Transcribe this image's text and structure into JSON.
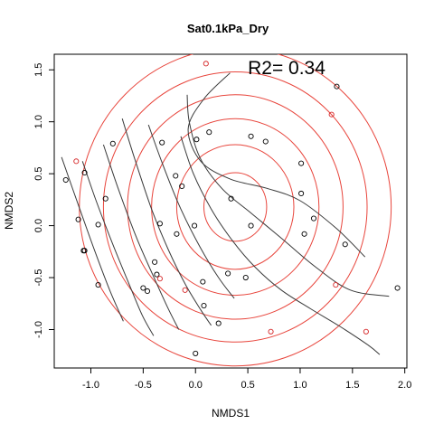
{
  "chart_data": {
    "type": "scatter",
    "title": "Sat0.1kPa_Dry",
    "xlabel": "NMDS1",
    "ylabel": "NMDS2",
    "xlim": [
      -1.35,
      2.02
    ],
    "ylim": [
      -1.37,
      1.65
    ],
    "xticks": [
      -1.0,
      -0.5,
      0.0,
      0.5,
      1.0,
      1.5,
      2.0
    ],
    "xtick_labels": [
      "-1.0",
      "-0.5",
      "0.0",
      "0.5",
      "1.0",
      "1.5",
      "2.0"
    ],
    "yticks": [
      -1.0,
      -0.5,
      0.0,
      0.5,
      1.0,
      1.5
    ],
    "ytick_labels": [
      "-1.0",
      "-0.5",
      "0.0",
      "0.5",
      "1.0",
      "1.5"
    ],
    "annotation": "R2= 0.34",
    "annotation_pos": [
      0.5,
      1.46
    ],
    "colors": {
      "contour_red": "#e8453c",
      "contour_dark": "#3a3a3a",
      "points": "#000000",
      "point_red": "#d62728"
    },
    "points": [
      {
        "x": 0.1,
        "y": 1.56,
        "red": true
      },
      {
        "x": 1.35,
        "y": 1.34,
        "red": false
      },
      {
        "x": 1.3,
        "y": 1.07,
        "red": true
      },
      {
        "x": 0.01,
        "y": 0.83,
        "red": false
      },
      {
        "x": 0.13,
        "y": 0.9,
        "red": false
      },
      {
        "x": 0.53,
        "y": 0.86,
        "red": false
      },
      {
        "x": 0.67,
        "y": 0.81,
        "red": false
      },
      {
        "x": -0.79,
        "y": 0.79,
        "red": false
      },
      {
        "x": -0.32,
        "y": 0.8,
        "red": false
      },
      {
        "x": -1.14,
        "y": 0.62,
        "red": true
      },
      {
        "x": -1.06,
        "y": 0.51,
        "red": false
      },
      {
        "x": -1.24,
        "y": 0.44,
        "red": false
      },
      {
        "x": -0.19,
        "y": 0.48,
        "red": false
      },
      {
        "x": -0.13,
        "y": 0.38,
        "red": false
      },
      {
        "x": 1.01,
        "y": 0.6,
        "red": false
      },
      {
        "x": 1.01,
        "y": 0.31,
        "red": false
      },
      {
        "x": -0.86,
        "y": 0.26,
        "red": false
      },
      {
        "x": 0.34,
        "y": 0.26,
        "red": false
      },
      {
        "x": -1.12,
        "y": 0.06,
        "red": false
      },
      {
        "x": -0.93,
        "y": 0.01,
        "red": false
      },
      {
        "x": -0.34,
        "y": 0.02,
        "red": false
      },
      {
        "x": -0.01,
        "y": 0.0,
        "red": false
      },
      {
        "x": 0.53,
        "y": 0.0,
        "red": false
      },
      {
        "x": 1.13,
        "y": 0.07,
        "red": false
      },
      {
        "x": 1.04,
        "y": -0.08,
        "red": false
      },
      {
        "x": -0.18,
        "y": -0.08,
        "red": false
      },
      {
        "x": 1.43,
        "y": -0.18,
        "red": false
      },
      {
        "x": -1.07,
        "y": -0.24,
        "red": false
      },
      {
        "x": -1.06,
        "y": -0.24,
        "red": false
      },
      {
        "x": -0.39,
        "y": -0.35,
        "red": false
      },
      {
        "x": -0.37,
        "y": -0.47,
        "red": false
      },
      {
        "x": -0.34,
        "y": -0.51,
        "red": true
      },
      {
        "x": 0.31,
        "y": -0.46,
        "red": false
      },
      {
        "x": 0.48,
        "y": -0.5,
        "red": false
      },
      {
        "x": 0.07,
        "y": -0.54,
        "red": false
      },
      {
        "x": -0.93,
        "y": -0.57,
        "red": false
      },
      {
        "x": -0.5,
        "y": -0.6,
        "red": false
      },
      {
        "x": -0.46,
        "y": -0.63,
        "red": false
      },
      {
        "x": -0.1,
        "y": -0.62,
        "red": true
      },
      {
        "x": 1.34,
        "y": -0.57,
        "red": true
      },
      {
        "x": 1.93,
        "y": -0.6,
        "red": false
      },
      {
        "x": 0.08,
        "y": -0.77,
        "red": false
      },
      {
        "x": 0.22,
        "y": -0.94,
        "red": false
      },
      {
        "x": 0.72,
        "y": -1.02,
        "red": true
      },
      {
        "x": 1.63,
        "y": -1.02,
        "red": true
      },
      {
        "x": 0.0,
        "y": -1.23,
        "red": false
      }
    ],
    "red_ellipse_center": [
      0.38,
      0.18
    ],
    "red_ellipse_radii": [
      [
        0.3,
        0.33
      ],
      [
        0.56,
        0.6
      ],
      [
        0.8,
        0.85
      ],
      [
        1.03,
        1.08
      ],
      [
        1.26,
        1.3
      ],
      [
        1.49,
        1.53
      ]
    ],
    "dark_contours": [
      [
        [
          -1.28,
          0.66
        ],
        [
          -1.12,
          0.2
        ],
        [
          -0.96,
          -0.25
        ],
        [
          -0.82,
          -0.62
        ],
        [
          -0.69,
          -0.92
        ]
      ],
      [
        [
          -1.08,
          0.62
        ],
        [
          -0.95,
          0.24
        ],
        [
          -0.79,
          -0.18
        ],
        [
          -0.64,
          -0.55
        ],
        [
          -0.51,
          -0.86
        ],
        [
          -0.4,
          -1.06
        ]
      ],
      [
        [
          -0.88,
          0.78
        ],
        [
          -0.74,
          0.36
        ],
        [
          -0.57,
          -0.1
        ],
        [
          -0.41,
          -0.47
        ],
        [
          -0.27,
          -0.78
        ],
        [
          -0.16,
          -1.0
        ]
      ],
      [
        [
          -0.7,
          1.03
        ],
        [
          -0.58,
          0.64
        ],
        [
          -0.42,
          0.16
        ],
        [
          -0.26,
          -0.23
        ],
        [
          -0.1,
          -0.56
        ],
        [
          0.05,
          -0.81
        ],
        [
          0.15,
          -0.96
        ]
      ],
      [
        [
          -0.45,
          0.97
        ],
        [
          -0.31,
          0.58
        ],
        [
          -0.14,
          0.16
        ],
        [
          0.04,
          -0.2
        ],
        [
          0.22,
          -0.5
        ],
        [
          0.37,
          -0.7
        ]
      ],
      [
        [
          -0.14,
          0.86
        ],
        [
          -0.02,
          0.5
        ],
        [
          0.15,
          0.16
        ],
        [
          0.35,
          -0.14
        ],
        [
          0.57,
          -0.4
        ],
        [
          0.82,
          -0.62
        ],
        [
          1.1,
          -0.8
        ],
        [
          1.38,
          -0.97
        ],
        [
          1.65,
          -1.15
        ],
        [
          1.76,
          -1.24
        ]
      ],
      [
        [
          -0.08,
          1.26
        ],
        [
          -0.06,
          1.0
        ],
        [
          0.04,
          0.66
        ],
        [
          0.25,
          0.36
        ],
        [
          0.52,
          0.13
        ],
        [
          0.82,
          -0.12
        ],
        [
          1.15,
          -0.4
        ],
        [
          1.48,
          -0.62
        ],
        [
          1.85,
          -0.68
        ]
      ],
      [
        [
          0.33,
          1.47
        ],
        [
          0.08,
          1.22
        ],
        [
          -0.07,
          0.93
        ],
        [
          0.05,
          0.62
        ],
        [
          0.33,
          0.45
        ],
        [
          0.68,
          0.36
        ],
        [
          1.0,
          0.24
        ],
        [
          1.35,
          -0.03
        ],
        [
          1.62,
          -0.3
        ]
      ]
    ]
  }
}
